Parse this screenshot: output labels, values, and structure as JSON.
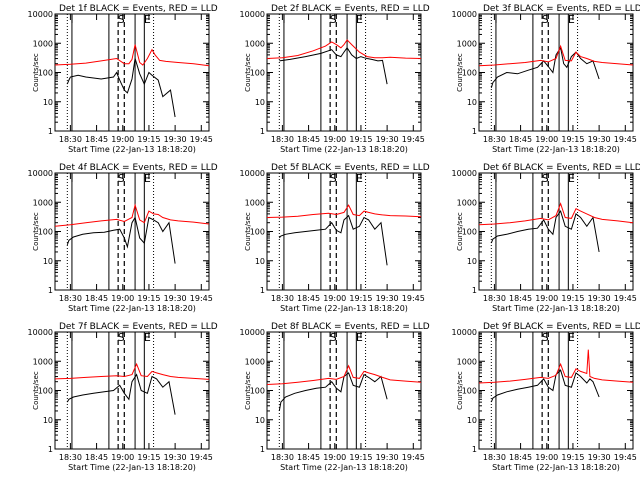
{
  "chart_data": [
    {
      "type": "line",
      "title": "Det 1f BLACK = Events, RED = LLD",
      "xlabel": "Start Time (22-Jan-13 18:18:20)",
      "ylabel": "Counts/sec",
      "x_ticks": [
        "18:30",
        "18:45",
        "19:00",
        "19:15",
        "19:30",
        "19:45"
      ],
      "y_ticks": [
        "1",
        "10",
        "100",
        "1000",
        "10000"
      ],
      "yscale": "log",
      "ylim": [
        1,
        10000
      ],
      "xlim": [
        0,
        100
      ],
      "markers": [
        "I",
        "S",
        "E"
      ],
      "series": [
        {
          "name": "BLACK = Events",
          "color": "#000000",
          "x": [
            8,
            9,
            10,
            15,
            20,
            30,
            38,
            40,
            42,
            45,
            47,
            50,
            52,
            55,
            58,
            61,
            63,
            67,
            70,
            75,
            78
          ],
          "y": [
            40,
            55,
            70,
            80,
            70,
            60,
            70,
            100,
            55,
            25,
            20,
            60,
            300,
            90,
            40,
            100,
            80,
            55,
            15,
            25,
            3
          ]
        },
        {
          "name": "RED = LLD",
          "color": "#ff0000",
          "x": [
            0,
            10,
            20,
            30,
            40,
            45,
            48,
            50,
            52,
            55,
            57,
            60,
            63,
            65,
            68,
            72,
            80,
            90,
            100
          ],
          "y": [
            180,
            190,
            210,
            250,
            300,
            200,
            200,
            280,
            900,
            220,
            180,
            300,
            600,
            400,
            260,
            240,
            220,
            200,
            170
          ]
        }
      ]
    },
    {
      "type": "line",
      "title": "Det 2f BLACK = Events, RED = LLD",
      "xlabel": "Start Time (22-Jan-13 18:18:20)",
      "ylabel": "Counts/sec",
      "x_ticks": [
        "18:30",
        "18:45",
        "19:00",
        "19:15",
        "19:30",
        "19:45"
      ],
      "y_ticks": [
        "1",
        "10",
        "100",
        "1000",
        "10000"
      ],
      "yscale": "log",
      "ylim": [
        1,
        10000
      ],
      "xlim": [
        0,
        100
      ],
      "markers": [
        "I",
        "S",
        "E"
      ],
      "series": [
        {
          "name": "BLACK = Events",
          "color": "#000000",
          "x": [
            8,
            15,
            25,
            35,
            42,
            45,
            48,
            50,
            52,
            55,
            58,
            61,
            63,
            65,
            68,
            72,
            75,
            78
          ],
          "y": [
            250,
            280,
            350,
            450,
            600,
            400,
            350,
            500,
            700,
            400,
            300,
            350,
            320,
            300,
            280,
            250,
            260,
            40
          ]
        },
        {
          "name": "RED = LLD",
          "color": "#ff0000",
          "x": [
            0,
            10,
            20,
            30,
            38,
            42,
            45,
            48,
            50,
            52,
            55,
            60,
            65,
            70,
            75,
            80,
            90,
            100
          ],
          "y": [
            300,
            320,
            380,
            550,
            800,
            1100,
            900,
            700,
            900,
            1300,
            900,
            500,
            350,
            320,
            320,
            330,
            310,
            300
          ]
        }
      ]
    },
    {
      "type": "line",
      "title": "Det 3f BLACK = Events, RED = LLD",
      "xlabel": "Start Time (22-Jan-13 18:18:20)",
      "ylabel": "Counts/sec",
      "x_ticks": [
        "18:30",
        "18:45",
        "19:00",
        "19:15",
        "19:30",
        "19:45"
      ],
      "y_ticks": [
        "1",
        "10",
        "100",
        "1000",
        "10000"
      ],
      "yscale": "log",
      "ylim": [
        1,
        10000
      ],
      "xlim": [
        0,
        100
      ],
      "markers": [
        "I",
        "S",
        "E"
      ],
      "series": [
        {
          "name": "BLACK = Events",
          "color": "#000000",
          "x": [
            8,
            9,
            12,
            18,
            25,
            32,
            38,
            42,
            45,
            48,
            50,
            53,
            55,
            57,
            60,
            63,
            66,
            70,
            74,
            78
          ],
          "y": [
            30,
            45,
            70,
            100,
            90,
            120,
            150,
            250,
            160,
            100,
            400,
            700,
            200,
            150,
            350,
            500,
            300,
            200,
            250,
            60
          ]
        },
        {
          "name": "RED = LLD",
          "color": "#ff0000",
          "x": [
            0,
            10,
            20,
            30,
            40,
            45,
            50,
            53,
            56,
            60,
            63,
            66,
            70,
            75,
            80,
            90,
            100
          ],
          "y": [
            170,
            180,
            200,
            220,
            260,
            230,
            300,
            800,
            260,
            250,
            500,
            350,
            300,
            240,
            220,
            200,
            180
          ]
        }
      ]
    },
    {
      "type": "line",
      "title": "Det 4f BLACK = Events, RED = LLD",
      "xlabel": "Start Time (22-Jan-13 18:18:20)",
      "ylabel": "Counts/sec",
      "x_ticks": [
        "18:30",
        "18:45",
        "19:00",
        "19:15",
        "19:30",
        "19:45"
      ],
      "y_ticks": [
        "1",
        "10",
        "100",
        "1000",
        "10000"
      ],
      "yscale": "log",
      "ylim": [
        1,
        10000
      ],
      "xlim": [
        0,
        100
      ],
      "markers": [
        "I",
        "S",
        "E"
      ],
      "series": [
        {
          "name": "BLACK = Events",
          "color": "#000000",
          "x": [
            8,
            9,
            12,
            18,
            25,
            32,
            38,
            42,
            45,
            47,
            50,
            52,
            55,
            58,
            61,
            64,
            67,
            70,
            74,
            78
          ],
          "y": [
            35,
            50,
            65,
            80,
            90,
            95,
            110,
            120,
            60,
            30,
            200,
            300,
            60,
            40,
            300,
            250,
            200,
            100,
            200,
            8
          ]
        },
        {
          "name": "RED = LLD",
          "color": "#ff0000",
          "x": [
            0,
            10,
            20,
            30,
            40,
            45,
            50,
            52,
            55,
            58,
            61,
            64,
            67,
            70,
            75,
            80,
            90,
            100
          ],
          "y": [
            150,
            170,
            200,
            230,
            260,
            220,
            300,
            800,
            250,
            200,
            500,
            400,
            380,
            300,
            250,
            230,
            210,
            180
          ]
        }
      ]
    },
    {
      "type": "line",
      "title": "Det 5f BLACK = Events, RED = LLD",
      "xlabel": "Start Time (22-Jan-13 18:18:20)",
      "ylabel": "Counts/sec",
      "x_ticks": [
        "18:30",
        "18:45",
        "19:00",
        "19:15",
        "19:30",
        "19:45"
      ],
      "y_ticks": [
        "1",
        "10",
        "100",
        "1000",
        "10000"
      ],
      "yscale": "log",
      "ylim": [
        1,
        10000
      ],
      "xlim": [
        0,
        100
      ],
      "markers": [
        "I",
        "S",
        "E"
      ],
      "series": [
        {
          "name": "BLACK = Events",
          "color": "#000000",
          "x": [
            8,
            9,
            12,
            18,
            25,
            32,
            38,
            42,
            45,
            48,
            50,
            53,
            56,
            60,
            63,
            66,
            70,
            74,
            78
          ],
          "y": [
            60,
            70,
            80,
            90,
            100,
            110,
            120,
            200,
            110,
            90,
            250,
            350,
            120,
            150,
            300,
            250,
            120,
            200,
            7
          ]
        },
        {
          "name": "RED = LLD",
          "color": "#ff0000",
          "x": [
            0,
            10,
            20,
            30,
            40,
            45,
            50,
            53,
            56,
            60,
            63,
            66,
            70,
            75,
            80,
            90,
            100
          ],
          "y": [
            300,
            310,
            330,
            380,
            420,
            380,
            450,
            800,
            380,
            350,
            500,
            450,
            400,
            370,
            350,
            340,
            320
          ]
        }
      ]
    },
    {
      "type": "line",
      "title": "Det 6f BLACK = Events, RED = LLD",
      "xlabel": "Start Time (22-Jan-13 18:18:20)",
      "ylabel": "Counts/sec",
      "x_ticks": [
        "18:30",
        "18:45",
        "19:00",
        "19:15",
        "19:30",
        "19:45"
      ],
      "y_ticks": [
        "1",
        "10",
        "100",
        "1000",
        "10000"
      ],
      "yscale": "log",
      "ylim": [
        1,
        10000
      ],
      "xlim": [
        0,
        100
      ],
      "markers": [
        "I",
        "S",
        "E"
      ],
      "series": [
        {
          "name": "BLACK = Events",
          "color": "#000000",
          "x": [
            8,
            9,
            12,
            18,
            25,
            32,
            38,
            42,
            45,
            48,
            50,
            53,
            56,
            60,
            63,
            66,
            70,
            74,
            78
          ],
          "y": [
            40,
            55,
            70,
            80,
            100,
            120,
            130,
            250,
            120,
            80,
            300,
            500,
            150,
            120,
            400,
            300,
            150,
            300,
            20
          ]
        },
        {
          "name": "RED = LLD",
          "color": "#ff0000",
          "x": [
            0,
            10,
            20,
            30,
            40,
            45,
            50,
            53,
            56,
            60,
            63,
            66,
            70,
            75,
            80,
            90,
            100
          ],
          "y": [
            170,
            180,
            200,
            230,
            280,
            250,
            350,
            900,
            300,
            280,
            600,
            500,
            400,
            300,
            260,
            230,
            200
          ]
        }
      ]
    },
    {
      "type": "line",
      "title": "Det 7f BLACK = Events, RED = LLD",
      "xlabel": "Start Time (22-Jan-13 18:18:20)",
      "ylabel": "Counts/sec",
      "x_ticks": [
        "18:30",
        "18:45",
        "19:00",
        "19:15",
        "19:30",
        "19:45"
      ],
      "y_ticks": [
        "1",
        "10",
        "100",
        "1000",
        "10000"
      ],
      "yscale": "log",
      "ylim": [
        1,
        10000
      ],
      "xlim": [
        0,
        100
      ],
      "markers": [
        "I",
        "S",
        "E"
      ],
      "series": [
        {
          "name": "BLACK = Events",
          "color": "#000000",
          "x": [
            8,
            9,
            12,
            18,
            25,
            32,
            38,
            42,
            45,
            48,
            50,
            53,
            56,
            60,
            63,
            66,
            70,
            74,
            78
          ],
          "y": [
            40,
            50,
            60,
            70,
            80,
            90,
            100,
            150,
            80,
            50,
            200,
            350,
            100,
            80,
            300,
            250,
            130,
            200,
            15
          ]
        },
        {
          "name": "RED = LLD",
          "color": "#ff0000",
          "x": [
            0,
            10,
            20,
            30,
            40,
            45,
            50,
            53,
            56,
            60,
            63,
            66,
            70,
            75,
            80,
            90,
            100
          ],
          "y": [
            250,
            260,
            280,
            300,
            320,
            300,
            350,
            800,
            320,
            300,
            450,
            400,
            350,
            300,
            280,
            260,
            240
          ]
        }
      ]
    },
    {
      "type": "line",
      "title": "Det 8f BLACK = Events, RED = LLD",
      "xlabel": "Start Time (22-Jan-13 18:18:20)",
      "ylabel": "Counts/sec",
      "x_ticks": [
        "18:30",
        "18:45",
        "19:00",
        "19:15",
        "19:30",
        "19:45"
      ],
      "y_ticks": [
        "1",
        "10",
        "100",
        "1000",
        "10000"
      ],
      "yscale": "log",
      "ylim": [
        1,
        10000
      ],
      "xlim": [
        0,
        100
      ],
      "markers": [
        "I",
        "S",
        "E"
      ],
      "series": [
        {
          "name": "BLACK = Events",
          "color": "#000000",
          "x": [
            8,
            9,
            12,
            18,
            25,
            32,
            38,
            42,
            45,
            48,
            50,
            53,
            56,
            60,
            63,
            66,
            70,
            74,
            78
          ],
          "y": [
            20,
            40,
            60,
            80,
            100,
            120,
            130,
            200,
            120,
            90,
            300,
            400,
            150,
            130,
            350,
            280,
            200,
            300,
            50
          ]
        },
        {
          "name": "RED = LLD",
          "color": "#ff0000",
          "x": [
            0,
            10,
            20,
            30,
            40,
            45,
            50,
            53,
            56,
            60,
            63,
            66,
            70,
            75,
            80,
            90,
            100
          ],
          "y": [
            160,
            170,
            190,
            220,
            260,
            240,
            300,
            700,
            280,
            260,
            450,
            400,
            350,
            280,
            230,
            210,
            190
          ]
        }
      ]
    },
    {
      "type": "line",
      "title": "Det 9f BLACK = Events, RED = LLD",
      "xlabel": "Start Time (22-Jan-13 18:18:20)",
      "ylabel": "Counts/sec",
      "x_ticks": [
        "18:30",
        "18:45",
        "19:00",
        "19:15",
        "19:30",
        "19:45"
      ],
      "y_ticks": [
        "1",
        "10",
        "100",
        "1000",
        "10000"
      ],
      "yscale": "log",
      "ylim": [
        1,
        10000
      ],
      "xlim": [
        0,
        100
      ],
      "markers": [
        "I",
        "S",
        "E"
      ],
      "series": [
        {
          "name": "BLACK = Events",
          "color": "#000000",
          "x": [
            8,
            9,
            12,
            18,
            25,
            32,
            38,
            42,
            45,
            48,
            50,
            53,
            56,
            60,
            63,
            66,
            70,
            72,
            74,
            78
          ],
          "y": [
            40,
            55,
            70,
            90,
            110,
            130,
            150,
            250,
            130,
            100,
            350,
            500,
            150,
            130,
            400,
            300,
            180,
            250,
            200,
            60
          ]
        },
        {
          "name": "RED = LLD",
          "color": "#ff0000",
          "x": [
            0,
            10,
            20,
            30,
            40,
            45,
            50,
            53,
            56,
            60,
            63,
            66,
            70,
            71,
            72,
            75,
            80,
            90,
            100
          ],
          "y": [
            180,
            190,
            210,
            240,
            280,
            260,
            330,
            800,
            300,
            280,
            550,
            450,
            380,
            2500,
            300,
            260,
            230,
            210,
            190
          ]
        }
      ]
    }
  ]
}
